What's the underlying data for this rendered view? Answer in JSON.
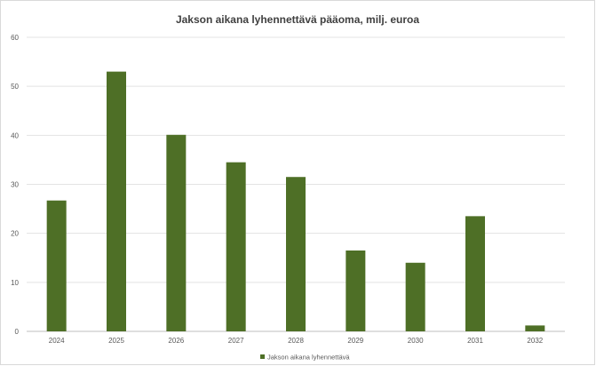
{
  "chart_data": {
    "type": "bar",
    "title": "Jakson aikana lyhennettävä pääoma, milj. euroa",
    "categories": [
      "2024",
      "2025",
      "2026",
      "2027",
      "2028",
      "2029",
      "2030",
      "2031",
      "2032"
    ],
    "series": [
      {
        "name": "Jakson aikana lyhennettävä",
        "values": [
          26.7,
          53.0,
          40.1,
          34.5,
          31.5,
          16.5,
          14.0,
          23.5,
          1.2
        ],
        "color": "#4e6f26"
      }
    ],
    "ylim": [
      0,
      60
    ],
    "yticks": [
      0,
      10,
      20,
      30,
      40,
      50,
      60
    ],
    "grid": true,
    "legend_position": "bottom"
  }
}
